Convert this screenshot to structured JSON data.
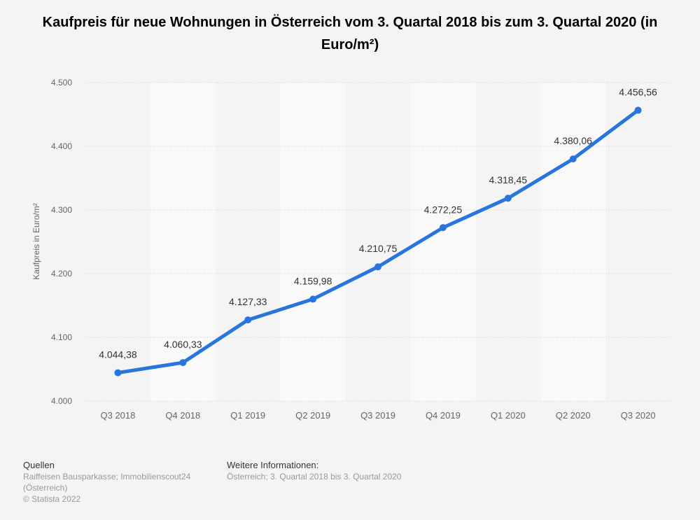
{
  "chart_data": {
    "type": "line",
    "title": "Kaufpreis für neue Wohnungen in Österreich vom 3. Quartal 2018 bis zum 3. Quartal 2020 (in Euro/m²)",
    "xlabel": "",
    "ylabel": "Kaufpreis in Euro/m²",
    "categories": [
      "Q3 2018",
      "Q4 2018",
      "Q1 2019",
      "Q2 2019",
      "Q3 2019",
      "Q4 2019",
      "Q1 2020",
      "Q2 2020",
      "Q3 2020"
    ],
    "values": [
      4044.38,
      4060.33,
      4127.33,
      4159.98,
      4210.75,
      4272.25,
      4318.45,
      4380.06,
      4456.56
    ],
    "value_labels": [
      "4.044,38",
      "4.060,33",
      "4.127,33",
      "4.159,98",
      "4.210,75",
      "4.272,25",
      "4.318,45",
      "4.380,06",
      "4.456,56"
    ],
    "ylim": [
      4000,
      4500
    ],
    "yticks": [
      4000,
      4100,
      4200,
      4300,
      4400,
      4500
    ],
    "ytick_labels": [
      "4.000",
      "4.100",
      "4.200",
      "4.300",
      "4.400",
      "4.500"
    ],
    "grid": true,
    "line_color": "#2876dd"
  },
  "footer": {
    "sources_heading": "Quellen",
    "sources_line1": "Raiffeisen Bausparkasse; Immobilienscout24",
    "sources_line2": "(Österreich)",
    "copyright": "© Statista 2022",
    "info_heading": "Weitere Informationen:",
    "info_text": "Österreich; 3. Quartal 2018 bis 3. Quartal 2020"
  }
}
